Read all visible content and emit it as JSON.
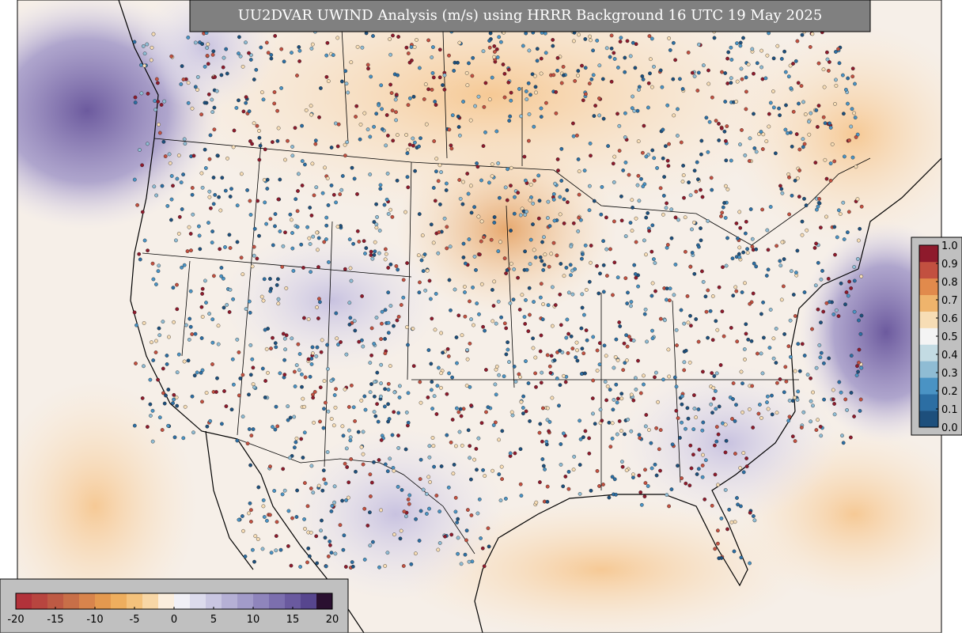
{
  "title": "UU2DVAR UWIND Analysis (m/s) using HRRR Background 16 UTC 19 May 2025",
  "wind_colorbar": {
    "range": [
      -20,
      20
    ],
    "ticks": [
      -20,
      -15,
      -10,
      -5,
      0,
      5,
      10,
      15,
      20
    ],
    "colors": [
      "#b2323a",
      "#b8453f",
      "#be5a44",
      "#c86f48",
      "#d8844c",
      "#e4994f",
      "#eeae5e",
      "#f4c27c",
      "#f8d7a6",
      "#fbeedd",
      "#f1f0f6",
      "#dcdbec",
      "#c9c6e1",
      "#b5b0d5",
      "#a29bc9",
      "#8f85bc",
      "#7c6fae",
      "#6a5a9f",
      "#57468e",
      "#2a1030"
    ]
  },
  "weight_colorbar": {
    "range": [
      0,
      1
    ],
    "ticks": [
      {
        "value": 0,
        "label": "0.0"
      },
      0.1,
      0.2,
      0.3,
      0.4,
      0.5,
      0.6,
      0.7,
      0.8,
      0.9,
      {
        "value": 1,
        "label": "1.0"
      }
    ],
    "colors": [
      "#1d4f7c",
      "#2c6ea3",
      "#4a93c4",
      "#8fbcd4",
      "#c3dbe3",
      "#f4f4f4",
      "#f7ddb5",
      "#efb46c",
      "#e18a4c",
      "#c25040",
      "#8e1a2c"
    ]
  }
}
